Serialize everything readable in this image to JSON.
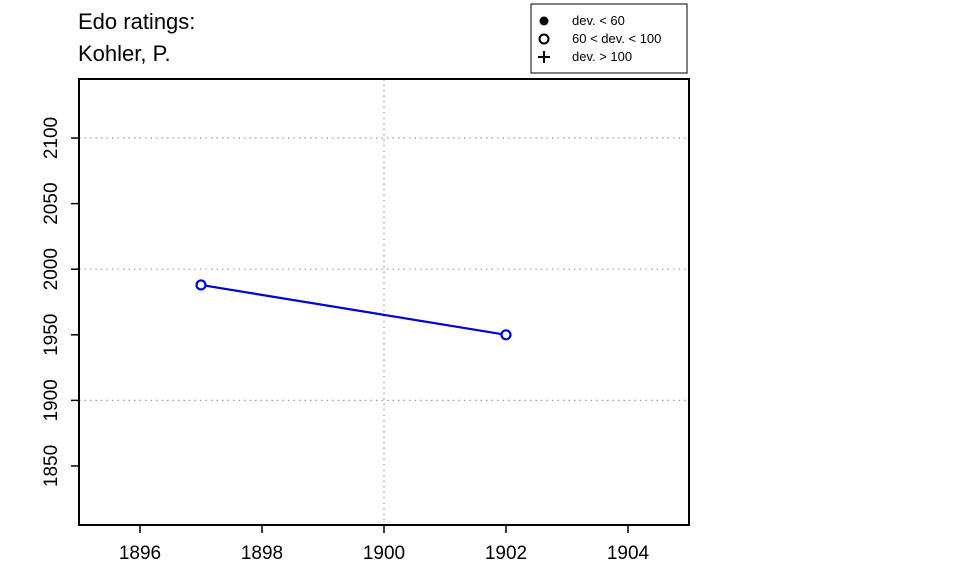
{
  "chart_data": {
    "type": "line",
    "title_lines": [
      "Edo ratings:",
      "Kohler, P."
    ],
    "xlabel": "",
    "ylabel": "",
    "xlim": [
      1895,
      1905
    ],
    "ylim": [
      1805,
      2145
    ],
    "x_ticks": [
      1896,
      1898,
      1900,
      1902,
      1904
    ],
    "y_ticks": [
      1850,
      1900,
      1950,
      2000,
      2050,
      2100
    ],
    "x_grid": [
      1895,
      1900,
      1905
    ],
    "y_grid": [
      1900,
      2000,
      2100
    ],
    "grid": true,
    "series": [
      {
        "color": "#0000dd",
        "marker": "open-circle",
        "points": [
          {
            "x": 1897,
            "y": 1988
          },
          {
            "x": 1902,
            "y": 1950
          }
        ]
      }
    ],
    "legend": {
      "placement": "top-right",
      "entries": [
        {
          "marker": "filled-circle",
          "label": "dev. < 60"
        },
        {
          "marker": "open-circle",
          "label": "60 < dev. < 100"
        },
        {
          "marker": "plus",
          "label": "dev. > 100"
        }
      ]
    }
  }
}
